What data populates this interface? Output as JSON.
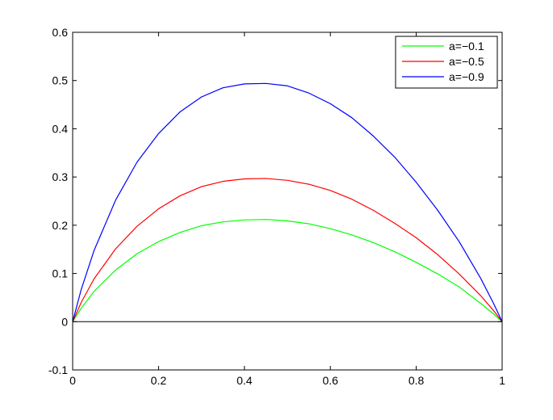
{
  "chart_data": {
    "type": "line",
    "title": "",
    "xlabel": "",
    "ylabel": "",
    "xlim": [
      0,
      1
    ],
    "ylim": [
      -0.1,
      0.6
    ],
    "x_ticks": [
      0,
      0.2,
      0.4,
      0.6,
      0.8,
      1
    ],
    "x_tick_labels": [
      "0",
      "0.2",
      "0.4",
      "0.6",
      "0.8",
      "1"
    ],
    "y_ticks": [
      -0.1,
      0,
      0.1,
      0.2,
      0.3,
      0.4,
      0.5,
      0.6
    ],
    "y_tick_labels": [
      "-0.1",
      "0",
      "0.1",
      "0.2",
      "0.3",
      "0.4",
      "0.5",
      "0.6"
    ],
    "grid": false,
    "legend_position": "top-right",
    "x": [
      0,
      0.02,
      0.05,
      0.1,
      0.15,
      0.2,
      0.25,
      0.3,
      0.35,
      0.4,
      0.45,
      0.5,
      0.55,
      0.6,
      0.65,
      0.7,
      0.75,
      0.8,
      0.85,
      0.9,
      0.95,
      0.98,
      1
    ],
    "series": [
      {
        "name": "a=−0.1",
        "color": "#00ff00",
        "values": [
          0,
          0.028,
          0.063,
          0.107,
          0.141,
          0.166,
          0.185,
          0.199,
          0.207,
          0.211,
          0.212,
          0.209,
          0.203,
          0.193,
          0.18,
          0.164,
          0.145,
          0.123,
          0.099,
          0.072,
          0.038,
          0.016,
          0
        ]
      },
      {
        "name": "a=−0.5",
        "color": "#ff0000",
        "values": [
          0,
          0.04,
          0.089,
          0.151,
          0.198,
          0.234,
          0.261,
          0.28,
          0.291,
          0.296,
          0.297,
          0.293,
          0.285,
          0.272,
          0.254,
          0.231,
          0.204,
          0.174,
          0.139,
          0.099,
          0.054,
          0.023,
          0
        ]
      },
      {
        "name": "a=−0.9",
        "color": "#0000ff",
        "values": [
          0,
          0.067,
          0.148,
          0.252,
          0.331,
          0.39,
          0.435,
          0.466,
          0.485,
          0.493,
          0.494,
          0.489,
          0.474,
          0.452,
          0.423,
          0.385,
          0.341,
          0.289,
          0.231,
          0.166,
          0.09,
          0.038,
          0
        ]
      }
    ],
    "reference_line": {
      "y": 0,
      "color": "#000000"
    }
  }
}
